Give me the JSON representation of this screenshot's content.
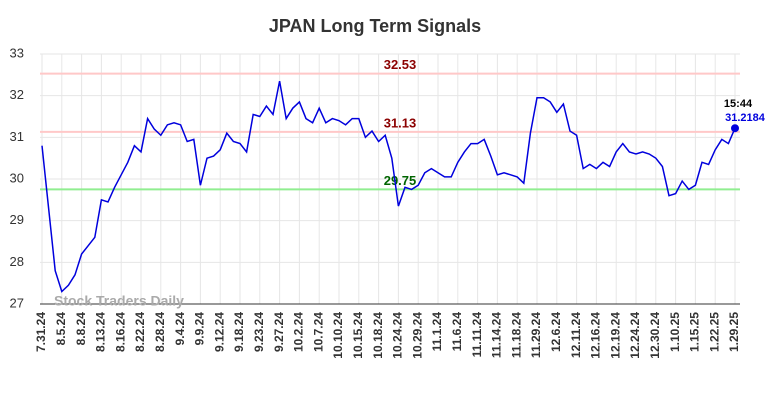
{
  "chart_data": {
    "type": "line",
    "title": "JPAN Long Term Signals",
    "categories": [
      "7.31.24",
      null,
      null,
      "8.5.24",
      null,
      null,
      "8.8.24",
      null,
      null,
      "8.13.24",
      null,
      null,
      "8.16.24",
      null,
      null,
      "8.22.24",
      null,
      null,
      "8.28.24",
      null,
      null,
      "9.4.24",
      null,
      null,
      "9.9.24",
      null,
      null,
      "9.12.24",
      null,
      null,
      "9.18.24",
      null,
      null,
      "9.23.24",
      null,
      null,
      "9.27.24",
      null,
      null,
      "10.2.24",
      null,
      null,
      "10.7.24",
      null,
      null,
      "10.10.24",
      null,
      null,
      "10.15.24",
      null,
      null,
      "10.18.24",
      null,
      null,
      "10.24.24",
      null,
      null,
      "10.29.24",
      null,
      null,
      "11.1.24",
      null,
      null,
      "11.6.24",
      null,
      null,
      "11.11.24",
      null,
      null,
      "11.14.24",
      null,
      null,
      "11.18.24",
      null,
      null,
      "11.29.24",
      null,
      null,
      "12.6.24",
      null,
      null,
      "12.11.24",
      null,
      null,
      "12.16.24",
      null,
      null,
      "12.19.24",
      null,
      null,
      "12.24.24",
      null,
      null,
      "12.30.24",
      null,
      null,
      "1.10.25",
      null,
      null,
      "1.15.25",
      null,
      null,
      "1.22.25",
      null,
      null,
      "1.29.25"
    ],
    "series": [
      {
        "name": "JPAN",
        "color": "#0000dd",
        "values": [
          30.8,
          29.3,
          27.8,
          27.3,
          27.45,
          27.7,
          28.2,
          28.4,
          28.6,
          29.5,
          29.45,
          29.8,
          30.1,
          30.4,
          30.8,
          30.65,
          31.45,
          31.2,
          31.05,
          31.3,
          31.35,
          31.3,
          30.9,
          30.95,
          29.85,
          30.5,
          30.55,
          30.7,
          31.1,
          30.9,
          30.85,
          30.65,
          31.55,
          31.5,
          31.75,
          31.55,
          32.35,
          31.45,
          31.7,
          31.85,
          31.45,
          31.35,
          31.7,
          31.35,
          31.45,
          31.4,
          31.3,
          31.45,
          31.45,
          31.0,
          31.15,
          30.9,
          31.05,
          30.5,
          29.35,
          29.8,
          29.75,
          29.85,
          30.15,
          30.25,
          30.15,
          30.05,
          30.05,
          30.4,
          30.65,
          30.85,
          30.85,
          30.95,
          30.55,
          30.1,
          30.15,
          30.1,
          30.05,
          29.9,
          31.1,
          31.95,
          31.95,
          31.85,
          31.6,
          31.8,
          31.15,
          31.05,
          30.25,
          30.35,
          30.25,
          30.4,
          30.3,
          30.65,
          30.85,
          30.65,
          30.6,
          30.65,
          30.6,
          30.5,
          30.3,
          29.6,
          29.65,
          29.95,
          29.75,
          29.85,
          30.4,
          30.35,
          30.7,
          30.95,
          30.85,
          31.2184
        ]
      }
    ],
    "hlines": [
      {
        "value": 32.53,
        "color": "#ffc8c8",
        "label_color": "#8b0000"
      },
      {
        "value": 31.13,
        "color": "#ffc8c8",
        "label_color": "#8b0000"
      },
      {
        "value": 29.75,
        "color": "#90ee90",
        "label_color": "#006400"
      }
    ],
    "last_time": "15:44",
    "watermark": "Stock Traders Daily",
    "ylim": [
      27,
      33
    ],
    "yticks": [
      27,
      28,
      29,
      30,
      31,
      32,
      33
    ],
    "grid": true
  }
}
